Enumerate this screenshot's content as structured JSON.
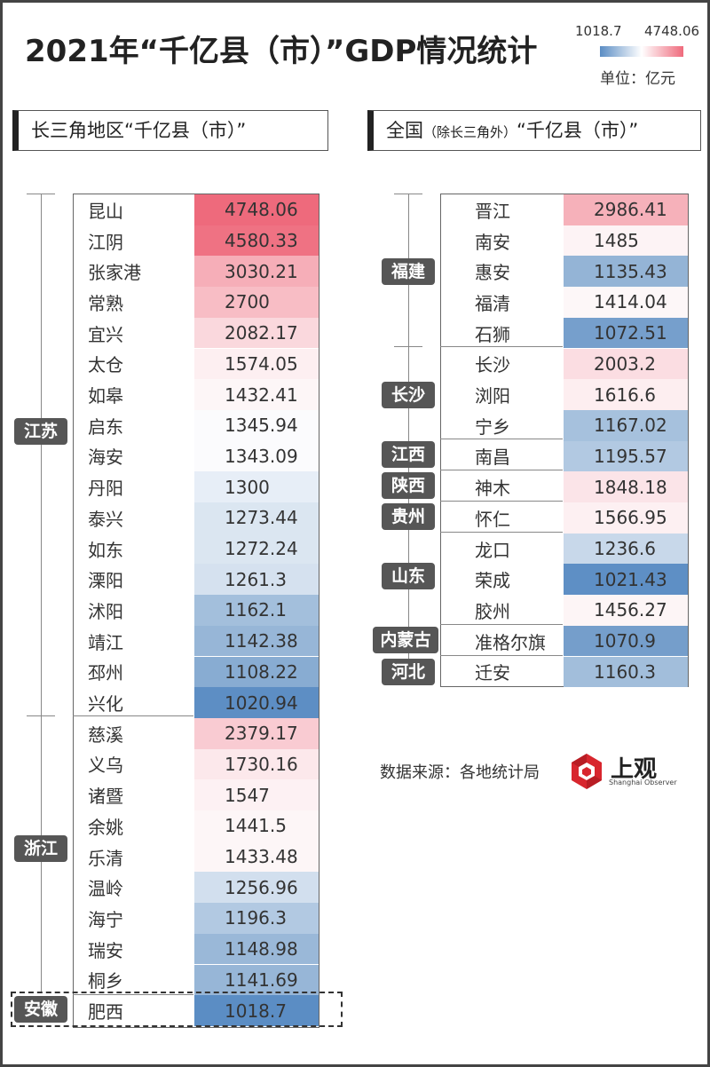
{
  "header": {
    "title": "2021年“千亿县（市）”GDP情况统计",
    "legend_min": "1018.7",
    "legend_max": "4748.06",
    "unit": "单位：亿元"
  },
  "left_section": {
    "title": "长三角地区“千亿县（市）”"
  },
  "right_section": {
    "title_main": "全国",
    "title_small": "（除长三角外）",
    "title_tail": "“千亿县（市）”"
  },
  "left_rows": [
    {
      "name": "昆山",
      "value": "4748.06",
      "color": "#ee6a7c"
    },
    {
      "name": "江阴",
      "value": "4580.33",
      "color": "#ef7283"
    },
    {
      "name": "张家港",
      "value": "3030.21",
      "color": "#f6aeb8"
    },
    {
      "name": "常熟",
      "value": "2700",
      "color": "#f8bdc5"
    },
    {
      "name": "宜兴",
      "value": "2082.17",
      "color": "#fad8dd"
    },
    {
      "name": "太仓",
      "value": "1574.05",
      "color": "#fdeff1"
    },
    {
      "name": "如皋",
      "value": "1432.41",
      "color": "#fdf6f7"
    },
    {
      "name": "启东",
      "value": "1345.94",
      "color": "#fbfbfd"
    },
    {
      "name": "海安",
      "value": "1343.09",
      "color": "#fbfbfd"
    },
    {
      "name": "丹阳",
      "value": "1300",
      "color": "#e7eef7"
    },
    {
      "name": "泰兴",
      "value": "1273.44",
      "color": "#dbe6f1"
    },
    {
      "name": "如东",
      "value": "1272.24",
      "color": "#dbe6f1"
    },
    {
      "name": "溧阳",
      "value": "1261.3",
      "color": "#d5e1ef"
    },
    {
      "name": "沭阳",
      "value": "1162.1",
      "color": "#a3bfdc"
    },
    {
      "name": "靖江",
      "value": "1142.38",
      "color": "#97b6d7"
    },
    {
      "name": "邳州",
      "value": "1108.22",
      "color": "#88acd2"
    },
    {
      "name": "兴化",
      "value": "1020.94",
      "color": "#5d8ec4"
    },
    {
      "name": "慈溪",
      "value": "2379.17",
      "color": "#f9cbd2"
    },
    {
      "name": "义乌",
      "value": "1730.16",
      "color": "#fce8eb"
    },
    {
      "name": "诸暨",
      "value": "1547",
      "color": "#fdf1f3"
    },
    {
      "name": "余姚",
      "value": "1441.5",
      "color": "#fdf6f7"
    },
    {
      "name": "乐清",
      "value": "1433.48",
      "color": "#fdf6f7"
    },
    {
      "name": "温岭",
      "value": "1256.96",
      "color": "#d2dfee"
    },
    {
      "name": "海宁",
      "value": "1196.3",
      "color": "#b2c9e2"
    },
    {
      "name": "瑞安",
      "value": "1148.98",
      "color": "#9ab8d8"
    },
    {
      "name": "桐乡",
      "value": "1141.69",
      "color": "#97b6d7"
    },
    {
      "name": "肥西",
      "value": "1018.7",
      "color": "#5b8dc4"
    }
  ],
  "right_rows": [
    {
      "name": "晋江",
      "value": "2986.41",
      "color": "#f6b1ba"
    },
    {
      "name": "南安",
      "value": "1485",
      "color": "#fdf3f5"
    },
    {
      "name": "惠安",
      "value": "1135.43",
      "color": "#94b4d6"
    },
    {
      "name": "福清",
      "value": "1414.04",
      "color": "#fdf7f8"
    },
    {
      "name": "石狮",
      "value": "1072.51",
      "color": "#769fcc"
    },
    {
      "name": "长沙",
      "value": "2003.2",
      "color": "#fbdde2"
    },
    {
      "name": "浏阳",
      "value": "1616.6",
      "color": "#fdeef0"
    },
    {
      "name": "宁乡",
      "value": "1167.02",
      "color": "#a6c1dd"
    },
    {
      "name": "南昌",
      "value": "1195.57",
      "color": "#b2c9e2"
    },
    {
      "name": "神木",
      "value": "1848.18",
      "color": "#fbe4e8"
    },
    {
      "name": "怀仁",
      "value": "1566.95",
      "color": "#fdf0f2"
    },
    {
      "name": "龙口",
      "value": "1236.6",
      "color": "#c8d8ea"
    },
    {
      "name": "荣成",
      "value": "1021.43",
      "color": "#5e8fc5"
    },
    {
      "name": "胶州",
      "value": "1456.27",
      "color": "#fdf5f6"
    },
    {
      "name": "准格尔旗",
      "value": "1070.9",
      "color": "#759ecb"
    },
    {
      "name": "迁安",
      "value": "1160.3",
      "color": "#a2bedb"
    }
  ],
  "left_groups": [
    {
      "label": "江苏"
    },
    {
      "label": "浙江"
    },
    {
      "label": "安徽"
    }
  ],
  "right_groups": [
    {
      "label": "福建"
    },
    {
      "label": "长沙"
    },
    {
      "label": "江西"
    },
    {
      "label": "陕西"
    },
    {
      "label": "贵州"
    },
    {
      "label": "山东"
    },
    {
      "label": "内蒙古"
    },
    {
      "label": "河北"
    }
  ],
  "footer": {
    "source": "数据来源：各地统计局",
    "logo_text": "上观",
    "logo_sub": "Shanghai Observer"
  }
}
